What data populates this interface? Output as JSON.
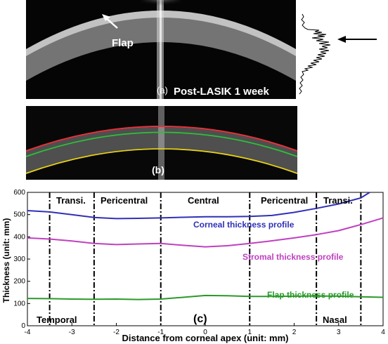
{
  "panel_a": {
    "arrow_label": "Flap",
    "panel_label": "(a)",
    "condition_label": "Post-LASIK 1 week"
  },
  "panel_b": {
    "panel_label": "(b)",
    "line_colors": {
      "anterior": "#e8323c",
      "flap_interface": "#2fbf3a",
      "posterior": "#e8d21e"
    }
  },
  "panel_c": {
    "panel_label": "(c)",
    "region_labels": [
      "Transi.",
      "Pericentral",
      "Central",
      "Pericentral",
      "Transi."
    ],
    "side_labels": {
      "left": "Temporal",
      "right": "Nasal"
    }
  },
  "chart_data": {
    "type": "line",
    "xlabel": "Distance from corneal apex (unit: mm)",
    "ylabel": "Thickness (unit: mm)",
    "xlim": [
      -4,
      4
    ],
    "ylim": [
      0,
      600
    ],
    "xticks": [
      -4,
      -3,
      -2,
      -1,
      0,
      1,
      2,
      3,
      4
    ],
    "yticks": [
      0,
      100,
      200,
      300,
      400,
      500,
      600
    ],
    "region_boundaries": [
      -3.5,
      -2.5,
      -1,
      1,
      2.5,
      3.5
    ],
    "grid": false,
    "series": [
      {
        "name": "Corneal thickness profile",
        "color": "#3030b8",
        "x": [
          -4,
          -3.5,
          -3,
          -2.5,
          -2,
          -1.5,
          -1,
          -0.5,
          0,
          0.5,
          1,
          1.5,
          2,
          2.5,
          3,
          3.5,
          3.7
        ],
        "y": [
          518,
          512,
          500,
          487,
          482,
          483,
          485,
          488,
          490,
          490,
          492,
          496,
          510,
          528,
          548,
          575,
          600
        ]
      },
      {
        "name": "Stromal thickness profile",
        "color": "#c040c0",
        "x": [
          -4,
          -3.5,
          -3,
          -2.5,
          -2,
          -1.5,
          -1,
          -0.5,
          0,
          0.5,
          1,
          1.5,
          2,
          2.5,
          3,
          3.5,
          4
        ],
        "y": [
          395,
          390,
          381,
          370,
          365,
          368,
          370,
          362,
          355,
          360,
          370,
          382,
          395,
          410,
          428,
          455,
          485
        ]
      },
      {
        "name": "Flap thickness profile",
        "color": "#2a9a2a",
        "x": [
          -4,
          -3.5,
          -3,
          -2.5,
          -2,
          -1.5,
          -1,
          -0.5,
          0,
          0.5,
          1,
          1.5,
          2,
          2.5,
          3,
          3.5,
          4
        ],
        "y": [
          123,
          122,
          120,
          119,
          120,
          118,
          120,
          128,
          136,
          135,
          132,
          132,
          133,
          134,
          133,
          130,
          128
        ]
      }
    ]
  }
}
